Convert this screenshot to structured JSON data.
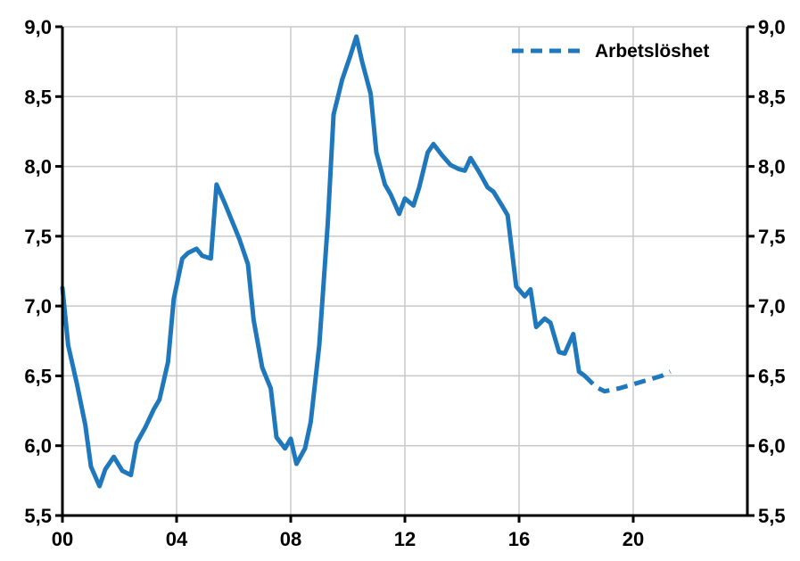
{
  "chart_data": {
    "type": "line",
    "title": "",
    "xlabel": "",
    "ylabel": "",
    "ylim": [
      5.5,
      9.0
    ],
    "xlim": [
      2000,
      2024
    ],
    "grid": true,
    "legend_position": "top-right",
    "y_ticks": [
      {
        "value": 5.5,
        "label": "5,5"
      },
      {
        "value": 6.0,
        "label": "6,0"
      },
      {
        "value": 6.5,
        "label": "6,5"
      },
      {
        "value": 7.0,
        "label": "7,0"
      },
      {
        "value": 7.5,
        "label": "7,5"
      },
      {
        "value": 8.0,
        "label": "8,0"
      },
      {
        "value": 8.5,
        "label": "8,5"
      },
      {
        "value": 9.0,
        "label": "9,0"
      }
    ],
    "x_ticks": [
      {
        "value": 2000,
        "label": "00"
      },
      {
        "value": 2004,
        "label": "04"
      },
      {
        "value": 2008,
        "label": "08"
      },
      {
        "value": 2012,
        "label": "12"
      },
      {
        "value": 2016,
        "label": "16"
      },
      {
        "value": 2020,
        "label": "20"
      }
    ],
    "series": [
      {
        "name": "",
        "style": "solid",
        "color": "#1f77bc",
        "points": [
          [
            2000.0,
            7.13
          ],
          [
            2000.2,
            6.72
          ],
          [
            2000.5,
            6.45
          ],
          [
            2000.8,
            6.15
          ],
          [
            2001.0,
            5.85
          ],
          [
            2001.3,
            5.71
          ],
          [
            2001.5,
            5.83
          ],
          [
            2001.8,
            5.92
          ],
          [
            2002.1,
            5.82
          ],
          [
            2002.4,
            5.79
          ],
          [
            2002.6,
            6.02
          ],
          [
            2002.9,
            6.13
          ],
          [
            2003.2,
            6.26
          ],
          [
            2003.4,
            6.33
          ],
          [
            2003.7,
            6.6
          ],
          [
            2003.9,
            7.05
          ],
          [
            2004.2,
            7.34
          ],
          [
            2004.4,
            7.38
          ],
          [
            2004.7,
            7.41
          ],
          [
            2004.9,
            7.36
          ],
          [
            2005.2,
            7.34
          ],
          [
            2005.4,
            7.87
          ],
          [
            2005.7,
            7.73
          ],
          [
            2006.0,
            7.58
          ],
          [
            2006.2,
            7.48
          ],
          [
            2006.5,
            7.3
          ],
          [
            2006.7,
            6.9
          ],
          [
            2007.0,
            6.56
          ],
          [
            2007.3,
            6.41
          ],
          [
            2007.5,
            6.06
          ],
          [
            2007.8,
            5.98
          ],
          [
            2008.0,
            6.05
          ],
          [
            2008.2,
            5.87
          ],
          [
            2008.5,
            5.98
          ],
          [
            2008.7,
            6.17
          ],
          [
            2009.0,
            6.72
          ],
          [
            2009.3,
            7.6
          ],
          [
            2009.5,
            8.37
          ],
          [
            2009.8,
            8.62
          ],
          [
            2010.1,
            8.8
          ],
          [
            2010.3,
            8.93
          ],
          [
            2010.5,
            8.75
          ],
          [
            2010.8,
            8.52
          ],
          [
            2011.0,
            8.1
          ],
          [
            2011.3,
            7.87
          ],
          [
            2011.5,
            7.8
          ],
          [
            2011.8,
            7.66
          ],
          [
            2012.0,
            7.77
          ],
          [
            2012.3,
            7.72
          ],
          [
            2012.5,
            7.85
          ],
          [
            2012.8,
            8.1
          ],
          [
            2013.0,
            8.16
          ],
          [
            2013.3,
            8.08
          ],
          [
            2013.6,
            8.01
          ],
          [
            2013.9,
            7.98
          ],
          [
            2014.1,
            7.97
          ],
          [
            2014.3,
            8.06
          ],
          [
            2014.6,
            7.96
          ],
          [
            2014.9,
            7.85
          ],
          [
            2015.1,
            7.82
          ],
          [
            2015.4,
            7.72
          ],
          [
            2015.6,
            7.65
          ],
          [
            2015.9,
            7.14
          ],
          [
            2016.2,
            7.07
          ],
          [
            2016.4,
            7.12
          ],
          [
            2016.6,
            6.85
          ],
          [
            2016.9,
            6.91
          ],
          [
            2017.1,
            6.88
          ],
          [
            2017.4,
            6.67
          ],
          [
            2017.6,
            6.66
          ],
          [
            2017.9,
            6.8
          ],
          [
            2018.1,
            6.53
          ],
          [
            2018.3,
            6.5
          ]
        ]
      },
      {
        "name": "Arbetslöshet",
        "style": "dashed",
        "color": "#1f77bc",
        "points": [
          [
            2018.3,
            6.5
          ],
          [
            2018.7,
            6.42
          ],
          [
            2019.0,
            6.39
          ],
          [
            2019.5,
            6.41
          ],
          [
            2020.0,
            6.44
          ],
          [
            2020.5,
            6.47
          ],
          [
            2021.0,
            6.5
          ],
          [
            2021.3,
            6.53
          ]
        ]
      }
    ]
  }
}
